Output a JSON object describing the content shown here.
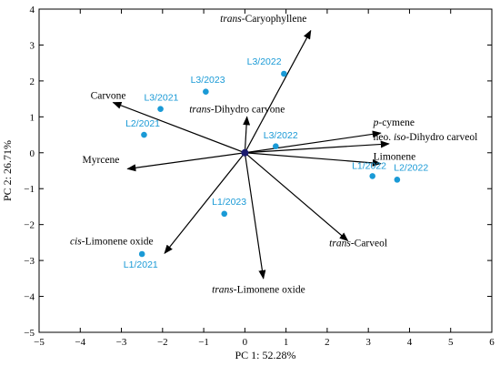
{
  "chart_data": {
    "type": "scatter",
    "subtype": "pca-biplot",
    "title": "",
    "xlabel": "PC 1: 52.28%",
    "ylabel": "PC 2: 26.71%",
    "xlim": [
      -5,
      6
    ],
    "ylim": [
      -5,
      4
    ],
    "xticks": [
      -5,
      -4,
      -3,
      -2,
      -1,
      0,
      1,
      2,
      3,
      4,
      5,
      6
    ],
    "yticks": [
      -5,
      -4,
      -3,
      -2,
      -1,
      0,
      1,
      2,
      3,
      4
    ],
    "grid": false,
    "colors": {
      "observations": "#1a9ad6",
      "vectors": "#000000",
      "origin": "#1a1a6e"
    },
    "vectors": [
      {
        "pre": "trans",
        "name": "-Caryophyllene",
        "x": 1.6,
        "y": 3.4,
        "anchor": "middle",
        "lx": 0.45,
        "ly": 3.65
      },
      {
        "pre": "",
        "name": "Carvone",
        "x": -3.2,
        "y": 1.4,
        "anchor": "start",
        "lx": -3.75,
        "ly": 1.5
      },
      {
        "pre": "trans",
        "name": "-Dihydro carvone",
        "x": 0.05,
        "y": 1.0,
        "anchor": "start",
        "lx": -1.35,
        "ly": 1.12
      },
      {
        "pre": "p",
        "name": "-cymene",
        "x": 3.3,
        "y": 0.55,
        "anchor": "start",
        "lx": 3.12,
        "ly": 0.75
      },
      {
        "pre": "",
        "name": "neo. iso-Dihydro carveol",
        "x": 3.5,
        "y": 0.25,
        "anchor": "start",
        "lx": 3.12,
        "ly": 0.35,
        "italicPart": "iso"
      },
      {
        "pre": "",
        "name": "Limonene",
        "x": 3.3,
        "y": -0.3,
        "anchor": "start",
        "lx": 3.12,
        "ly": -0.2
      },
      {
        "pre": "",
        "name": "Myrcene",
        "x": -2.85,
        "y": -0.45,
        "anchor": "start",
        "lx": -3.95,
        "ly": -0.28
      },
      {
        "pre": "cis",
        "name": "-Limonene oxide",
        "x": -1.95,
        "y": -2.8,
        "anchor": "start",
        "lx": -4.25,
        "ly": -2.55
      },
      {
        "pre": "trans",
        "name": "-Carveol",
        "x": 2.5,
        "y": -2.45,
        "anchor": "start",
        "lx": 2.05,
        "ly": -2.6
      },
      {
        "pre": "trans",
        "name": "-Limonene oxide",
        "x": 0.45,
        "y": -3.5,
        "anchor": "start",
        "lx": -0.8,
        "ly": -3.9
      }
    ],
    "observations": [
      {
        "label": "L3/2022",
        "x": 0.95,
        "y": 2.2,
        "lx": 0.05,
        "ly": 2.45
      },
      {
        "label": "L3/2023",
        "x": -0.95,
        "y": 1.7,
        "lx": -1.32,
        "ly": 1.95
      },
      {
        "label": "L3/2021",
        "x": -2.05,
        "y": 1.22,
        "lx": -2.45,
        "ly": 1.45
      },
      {
        "label": "L2/2021",
        "x": -2.45,
        "y": 0.5,
        "lx": -2.9,
        "ly": 0.73
      },
      {
        "label": "L3/2022",
        "x": 0.75,
        "y": 0.18,
        "lx": 0.45,
        "ly": 0.4
      },
      {
        "label": "L1/2022",
        "x": 3.1,
        "y": -0.65,
        "lx": 2.6,
        "ly": -0.45
      },
      {
        "label": "L2/2022",
        "x": 3.7,
        "y": -0.75,
        "lx": 3.62,
        "ly": -0.5
      },
      {
        "label": "L1/2023",
        "x": -0.5,
        "y": -1.7,
        "lx": -0.8,
        "ly": -1.45
      },
      {
        "label": "L1/2021",
        "x": -2.5,
        "y": -2.82,
        "lx": -2.95,
        "ly": -3.2
      }
    ]
  }
}
